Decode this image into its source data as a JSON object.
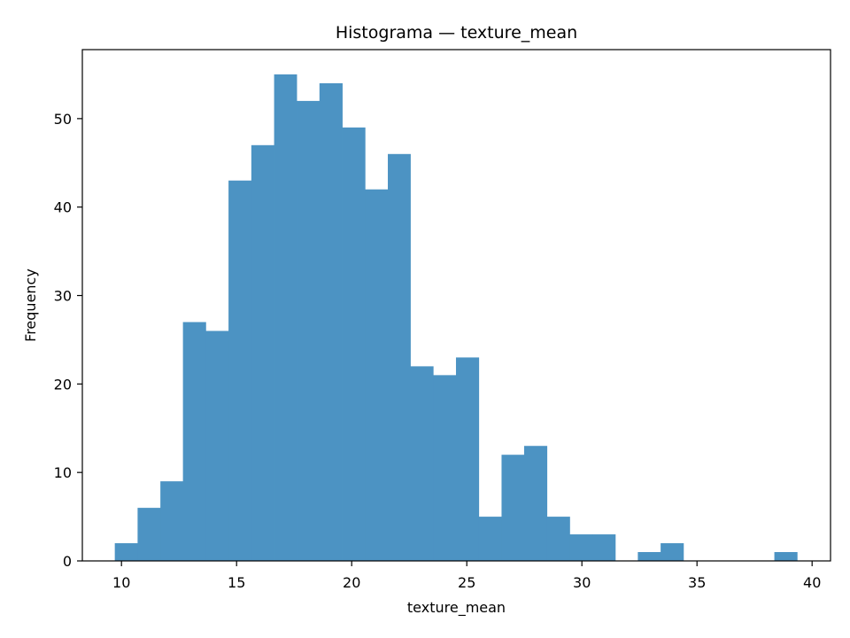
{
  "chart_data": {
    "type": "bar",
    "title": "Histograma — texture_mean",
    "xlabel": "texture_mean",
    "ylabel": "Frequency",
    "xlim": [
      8.3,
      40.8
    ],
    "ylim": [
      0,
      57.8
    ],
    "xticks": [
      10,
      15,
      20,
      25,
      30,
      35,
      40
    ],
    "yticks": [
      0,
      10,
      20,
      30,
      40,
      50
    ],
    "bin_start": 9.71,
    "bin_width": 0.988,
    "bins": [
      {
        "x0": 9.71,
        "x1": 10.7,
        "count": 2
      },
      {
        "x0": 10.7,
        "x1": 11.69,
        "count": 6
      },
      {
        "x0": 11.69,
        "x1": 12.67,
        "count": 9
      },
      {
        "x0": 12.67,
        "x1": 13.66,
        "count": 27
      },
      {
        "x0": 13.66,
        "x1": 14.65,
        "count": 26
      },
      {
        "x0": 14.65,
        "x1": 15.64,
        "count": 43
      },
      {
        "x0": 15.64,
        "x1": 16.63,
        "count": 47
      },
      {
        "x0": 16.63,
        "x1": 17.61,
        "count": 55
      },
      {
        "x0": 17.61,
        "x1": 18.6,
        "count": 52
      },
      {
        "x0": 18.6,
        "x1": 19.59,
        "count": 54
      },
      {
        "x0": 19.59,
        "x1": 20.58,
        "count": 49
      },
      {
        "x0": 20.58,
        "x1": 21.57,
        "count": 42
      },
      {
        "x0": 21.57,
        "x1": 22.55,
        "count": 46
      },
      {
        "x0": 22.55,
        "x1": 23.54,
        "count": 22
      },
      {
        "x0": 23.54,
        "x1": 24.53,
        "count": 21
      },
      {
        "x0": 24.53,
        "x1": 25.52,
        "count": 23
      },
      {
        "x0": 25.52,
        "x1": 26.51,
        "count": 5
      },
      {
        "x0": 26.51,
        "x1": 27.49,
        "count": 12
      },
      {
        "x0": 27.49,
        "x1": 28.48,
        "count": 13
      },
      {
        "x0": 28.48,
        "x1": 29.47,
        "count": 5
      },
      {
        "x0": 29.47,
        "x1": 30.46,
        "count": 3
      },
      {
        "x0": 30.46,
        "x1": 31.45,
        "count": 3
      },
      {
        "x0": 31.45,
        "x1": 32.43,
        "count": 0
      },
      {
        "x0": 32.43,
        "x1": 33.42,
        "count": 1
      },
      {
        "x0": 33.42,
        "x1": 34.41,
        "count": 2
      },
      {
        "x0": 34.41,
        "x1": 35.4,
        "count": 0
      },
      {
        "x0": 35.4,
        "x1": 36.39,
        "count": 0
      },
      {
        "x0": 36.39,
        "x1": 37.37,
        "count": 0
      },
      {
        "x0": 37.37,
        "x1": 38.36,
        "count": 0
      },
      {
        "x0": 38.36,
        "x1": 39.35,
        "count": 1
      }
    ],
    "bar_color": "#4c93c3",
    "grid": false,
    "legend": "none"
  }
}
